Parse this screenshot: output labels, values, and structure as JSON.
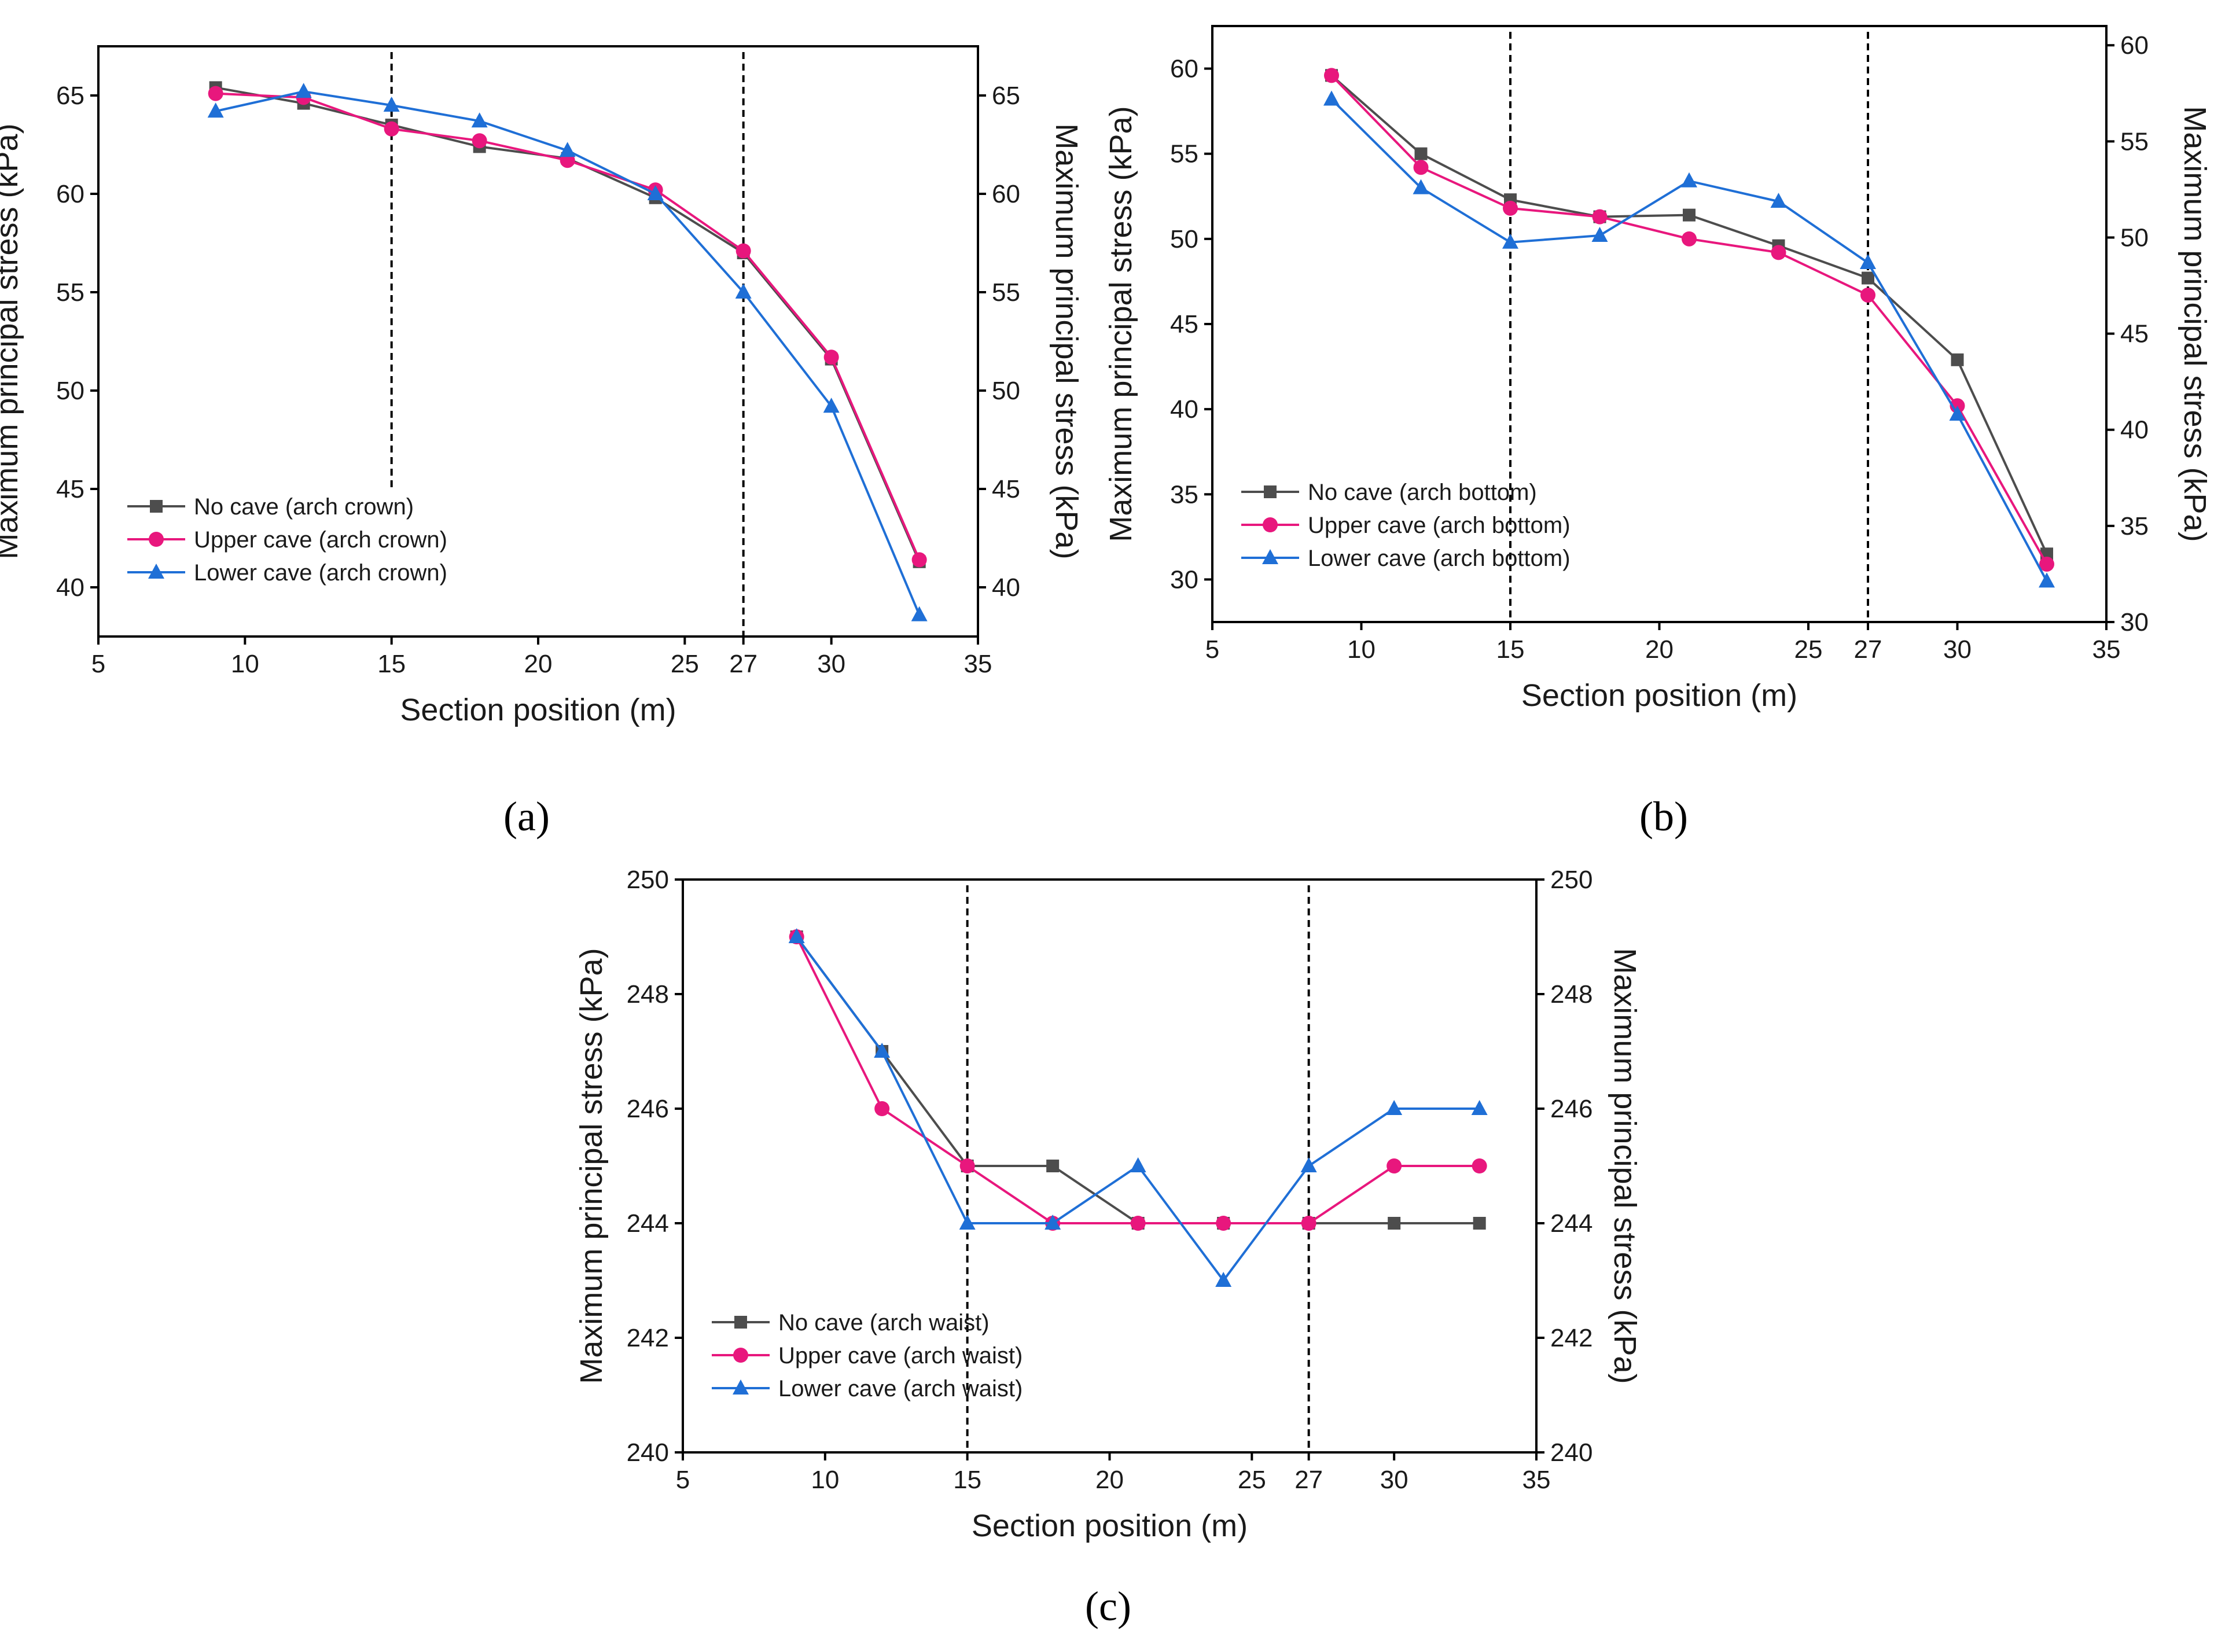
{
  "colors": {
    "no_cave": "#4d4d4d",
    "upper_cave": "#e8177d",
    "lower_cave": "#1f6fd6",
    "axis": "#000000"
  },
  "chart_data": [
    {
      "id": "a",
      "caption": "(a)",
      "type": "line",
      "xlabel": "Section position (m)",
      "ylabel_left": "Maximum principal stress (kPa)",
      "ylabel_right": "Maximum principal stress (kPa)",
      "xlim": [
        5,
        35
      ],
      "ylim": [
        37.5,
        67.5
      ],
      "xticks": [
        5,
        10,
        15,
        20,
        25,
        27,
        30,
        35
      ],
      "yticks": [
        40,
        45,
        50,
        55,
        60,
        65
      ],
      "dashed_lines_x": [
        15,
        27
      ],
      "legend_position": "bottom-left",
      "series": [
        {
          "name": "No cave (arch crown)",
          "key": "no_cave",
          "marker": "square",
          "x": [
            9,
            12,
            15,
            18,
            21,
            24,
            27,
            30,
            33
          ],
          "y": [
            65.4,
            64.6,
            63.5,
            62.4,
            61.8,
            59.8,
            57.0,
            51.6,
            41.3
          ]
        },
        {
          "name": "Upper cave (arch crown)",
          "key": "upper_cave",
          "marker": "circle",
          "x": [
            9,
            12,
            15,
            18,
            21,
            24,
            27,
            30,
            33
          ],
          "y": [
            65.1,
            64.9,
            63.3,
            62.7,
            61.7,
            60.2,
            57.1,
            51.7,
            41.4
          ]
        },
        {
          "name": "Lower cave (arch crown)",
          "key": "lower_cave",
          "marker": "triangle",
          "x": [
            9,
            12,
            15,
            18,
            21,
            24,
            27,
            30,
            33
          ],
          "y": [
            64.2,
            65.2,
            64.5,
            63.7,
            62.2,
            60.0,
            55.0,
            49.2,
            38.6
          ]
        }
      ]
    },
    {
      "id": "b",
      "caption": "(b)",
      "type": "line",
      "xlabel": "Section position (m)",
      "ylabel_left": "Maximum principal stress (kPa)",
      "ylabel_right": "Maximum principal stress (kPa)",
      "xlim": [
        5,
        35
      ],
      "ylim": [
        27.5,
        62.5
      ],
      "xticks": [
        5,
        10,
        15,
        20,
        25,
        27,
        30,
        35
      ],
      "yticks": [
        30,
        35,
        40,
        45,
        50,
        55,
        60
      ],
      "y2lim": [
        30,
        61
      ],
      "y2ticks": [
        30,
        35,
        40,
        45,
        50,
        55,
        60
      ],
      "dashed_lines_x": [
        15,
        27
      ],
      "legend_position": "bottom-left",
      "series": [
        {
          "name": "No cave (arch bottom)",
          "key": "no_cave",
          "marker": "square",
          "x": [
            9,
            12,
            15,
            18,
            21,
            24,
            27,
            30,
            33
          ],
          "y": [
            59.6,
            55.0,
            52.3,
            51.3,
            51.4,
            49.6,
            47.7,
            42.9,
            31.5
          ]
        },
        {
          "name": "Upper cave (arch bottom)",
          "key": "upper_cave",
          "marker": "circle",
          "x": [
            9,
            12,
            15,
            18,
            21,
            24,
            27,
            30,
            33
          ],
          "y": [
            59.6,
            54.2,
            51.8,
            51.3,
            50.0,
            49.2,
            46.7,
            40.2,
            30.9
          ]
        },
        {
          "name": "Lower cave (arch bottom)",
          "key": "lower_cave",
          "marker": "triangle",
          "x": [
            9,
            12,
            15,
            18,
            21,
            24,
            27,
            30,
            33
          ],
          "y": [
            58.2,
            53.0,
            49.8,
            50.2,
            53.4,
            52.2,
            48.6,
            39.7,
            29.9
          ]
        }
      ]
    },
    {
      "id": "c",
      "caption": "(c)",
      "type": "line",
      "xlabel": "Section position (m)",
      "ylabel_left": "Maximum principal stress (kPa)",
      "ylabel_right": "Maximum principal stress (kPa)",
      "xlim": [
        5,
        35
      ],
      "ylim": [
        240,
        250
      ],
      "xticks": [
        5,
        10,
        15,
        20,
        25,
        27,
        30,
        35
      ],
      "yticks": [
        240,
        242,
        244,
        246,
        248,
        250
      ],
      "dashed_lines_x": [
        15,
        27
      ],
      "legend_position": "bottom-left",
      "series": [
        {
          "name": "No cave (arch waist)",
          "key": "no_cave",
          "marker": "square",
          "x": [
            9,
            12,
            15,
            18,
            21,
            24,
            27,
            30,
            33
          ],
          "y": [
            249,
            247,
            245,
            245,
            244,
            244,
            244,
            244,
            244
          ]
        },
        {
          "name": "Upper cave (arch waist)",
          "key": "upper_cave",
          "marker": "circle",
          "x": [
            9,
            12,
            15,
            18,
            21,
            24,
            27,
            30,
            33
          ],
          "y": [
            249,
            246,
            245,
            244,
            244,
            244,
            244,
            245,
            245
          ]
        },
        {
          "name": "Lower cave (arch waist)",
          "key": "lower_cave",
          "marker": "triangle",
          "x": [
            9,
            12,
            15,
            18,
            21,
            24,
            27,
            30,
            33
          ],
          "y": [
            249,
            247,
            244,
            244,
            245,
            243,
            245,
            246,
            246
          ]
        }
      ]
    }
  ]
}
